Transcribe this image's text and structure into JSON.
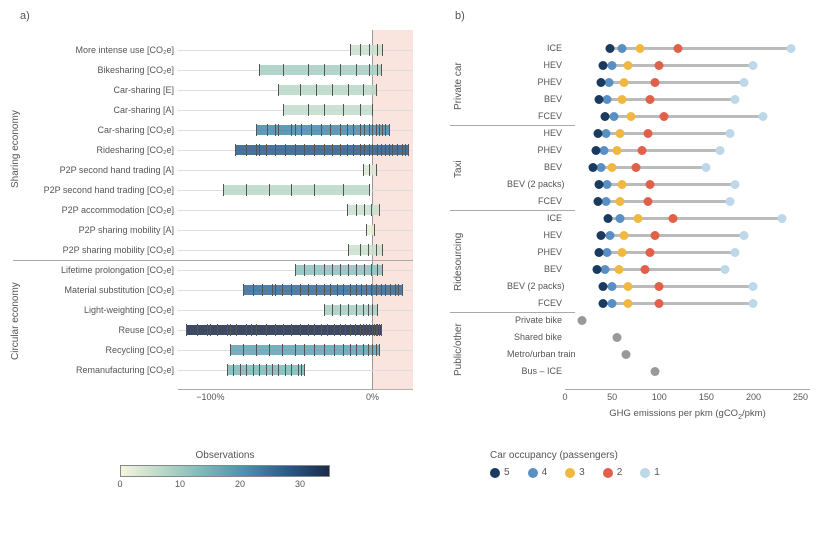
{
  "panelA": {
    "label": "a)",
    "xlim": [
      -120,
      25
    ],
    "xticks": [
      {
        "v": -100,
        "t": "−100%"
      },
      {
        "v": 0,
        "t": "0%"
      }
    ],
    "shade_from": 0,
    "shade_to": 25,
    "groups": [
      {
        "name": "Sharing economy",
        "rows": [
          {
            "label": "More intense use [CO₂e]",
            "min": -14,
            "max": 6,
            "obs": 5,
            "ticks": [
              -14,
              -8,
              -2,
              3,
              6
            ]
          },
          {
            "label": "Bikesharing [CO₂e]",
            "min": -70,
            "max": 5,
            "obs": 9,
            "ticks": [
              -70,
              -55,
              -40,
              -30,
              -20,
              -10,
              -2,
              3,
              5
            ]
          },
          {
            "label": "Car-sharing [E]",
            "min": -58,
            "max": 2,
            "obs": 7,
            "ticks": [
              -58,
              -45,
              -35,
              -25,
              -15,
              -6,
              2
            ]
          },
          {
            "label": "Car-sharing [A]",
            "min": -55,
            "max": 0,
            "obs": 6,
            "ticks": [
              -55,
              -40,
              -30,
              -18,
              -8,
              0
            ]
          },
          {
            "label": "Car-sharing [CO₂e]",
            "min": -72,
            "max": 10,
            "obs": 22,
            "ticks": [
              -72,
              -65,
              -58,
              -50,
              -44,
              -38,
              -32,
              -26,
              -20,
              -16,
              -12,
              -8,
              -5,
              -2,
              0,
              2,
              4,
              6,
              8,
              10,
              -60,
              -48
            ]
          },
          {
            "label": "Ridesharing [CO₂e]",
            "min": -85,
            "max": 22,
            "obs": 28,
            "ticks": [
              -85,
              -78,
              -72,
              -66,
              -60,
              -54,
              -48,
              -42,
              -36,
              -30,
              -25,
              -20,
              -16,
              -12,
              -8,
              -5,
              -2,
              0,
              3,
              5,
              8,
              10,
              12,
              15,
              18,
              20,
              22,
              -70
            ]
          },
          {
            "label": "P2P second hand trading [A]",
            "min": -6,
            "max": 2,
            "obs": 3,
            "ticks": [
              -6,
              -2,
              2
            ]
          },
          {
            "label": "P2P second hand trading [CO₂e]",
            "min": -92,
            "max": -2,
            "obs": 7,
            "ticks": [
              -92,
              -78,
              -64,
              -50,
              -36,
              -18,
              -2
            ]
          },
          {
            "label": "P2P accommodation [CO₂e]",
            "min": -16,
            "max": 4,
            "obs": 5,
            "ticks": [
              -16,
              -10,
              -5,
              -1,
              4
            ]
          },
          {
            "label": "P2P sharing mobility [A]",
            "min": -4,
            "max": 1,
            "obs": 2,
            "ticks": [
              -4,
              1
            ]
          },
          {
            "label": "P2P sharing mobility [CO₂e]",
            "min": -15,
            "max": 6,
            "obs": 5,
            "ticks": [
              -15,
              -8,
              -3,
              2,
              6
            ]
          }
        ]
      },
      {
        "name": "Circular economy",
        "rows": [
          {
            "label": "Lifetime prolongation [CO₂e]",
            "min": -48,
            "max": 6,
            "obs": 12,
            "ticks": [
              -48,
              -42,
              -36,
              -30,
              -25,
              -20,
              -15,
              -10,
              -5,
              -1,
              3,
              6
            ]
          },
          {
            "label": "Material substitution [CO₂e]",
            "min": -80,
            "max": 18,
            "obs": 26,
            "ticks": [
              -80,
              -74,
              -68,
              -62,
              -56,
              -50,
              -45,
              -40,
              -35,
              -30,
              -26,
              -22,
              -18,
              -14,
              -10,
              -7,
              -4,
              -1,
              2,
              5,
              8,
              11,
              14,
              16,
              18,
              -60
            ]
          },
          {
            "label": "Light-weighting [CO₂e]",
            "min": -30,
            "max": 3,
            "obs": 9,
            "ticks": [
              -30,
              -25,
              -20,
              -15,
              -10,
              -6,
              -3,
              0,
              3
            ]
          },
          {
            "label": "Reuse [CO₂e]",
            "min": -115,
            "max": 5,
            "obs": 35,
            "ticks": [
              -115,
              -108,
              -102,
              -96,
              -90,
              -84,
              -78,
              -72,
              -66,
              -60,
              -55,
              -50,
              -45,
              -40,
              -36,
              -32,
              -28,
              -24,
              -20,
              -17,
              -14,
              -11,
              -8,
              -6,
              -4,
              -2,
              0,
              1,
              2,
              3,
              4,
              5,
              -100,
              -88,
              -75
            ]
          },
          {
            "label": "Recycling [CO₂e]",
            "min": -88,
            "max": 4,
            "obs": 18,
            "ticks": [
              -88,
              -80,
              -72,
              -64,
              -56,
              -48,
              -42,
              -36,
              -30,
              -24,
              -18,
              -14,
              -10,
              -6,
              -3,
              0,
              2,
              4
            ]
          },
          {
            "label": "Remanufacturing [CO₂e]",
            "min": -90,
            "max": -42,
            "obs": 14,
            "ticks": [
              -90,
              -86,
              -82,
              -78,
              -74,
              -70,
              -66,
              -62,
              -58,
              -54,
              -50,
              -46,
              -44,
              -42
            ]
          }
        ]
      }
    ],
    "colorbar": {
      "title": "Observations",
      "gradient_stops": [
        "#f5f5dc",
        "#b8d8c8",
        "#7ab8b8",
        "#4a90b0",
        "#2a5a8a",
        "#1a2a4a"
      ],
      "min": 0,
      "max": 35,
      "ticks": [
        0,
        10,
        20,
        30
      ]
    }
  },
  "panelB": {
    "label": "b)",
    "xlim": [
      0,
      260
    ],
    "xticks": [
      0,
      50,
      100,
      150,
      200,
      250
    ],
    "xlabel": "GHG emissions per pkm (gCO₂/pkm)",
    "occ_colors": {
      "5": "#1b3a5f",
      "4": "#5a8fc4",
      "3": "#f0b840",
      "2": "#e0604a",
      "1": "#bdd8e8"
    },
    "groups": [
      {
        "name": "Private car",
        "rows": [
          {
            "label": "ICE",
            "vals": {
              "5": 48,
              "4": 60,
              "3": 80,
              "2": 120,
              "1": 240
            }
          },
          {
            "label": "HEV",
            "vals": {
              "5": 40,
              "4": 50,
              "3": 67,
              "2": 100,
              "1": 200
            }
          },
          {
            "label": "PHEV",
            "vals": {
              "5": 38,
              "4": 47,
              "3": 63,
              "2": 95,
              "1": 190
            }
          },
          {
            "label": "BEV",
            "vals": {
              "5": 36,
              "4": 45,
              "3": 60,
              "2": 90,
              "1": 180
            }
          },
          {
            "label": "FCEV",
            "vals": {
              "5": 42,
              "4": 52,
              "3": 70,
              "2": 105,
              "1": 210
            }
          }
        ]
      },
      {
        "name": "Taxi",
        "rows": [
          {
            "label": "HEV",
            "vals": {
              "5": 35,
              "4": 44,
              "3": 58,
              "2": 88,
              "1": 175
            }
          },
          {
            "label": "PHEV",
            "vals": {
              "5": 33,
              "4": 41,
              "3": 55,
              "2": 82,
              "1": 165
            }
          },
          {
            "label": "BEV",
            "vals": {
              "5": 30,
              "4": 38,
              "3": 50,
              "2": 75,
              "1": 150
            }
          },
          {
            "label": "BEV (2 packs)",
            "vals": {
              "5": 36,
              "4": 45,
              "3": 60,
              "2": 90,
              "1": 180
            }
          },
          {
            "label": "FCEV",
            "vals": {
              "5": 35,
              "4": 44,
              "3": 58,
              "2": 88,
              "1": 175
            }
          }
        ]
      },
      {
        "name": "Ridesourcing",
        "rows": [
          {
            "label": "ICE",
            "vals": {
              "5": 46,
              "4": 58,
              "3": 77,
              "2": 115,
              "1": 230
            }
          },
          {
            "label": "HEV",
            "vals": {
              "5": 38,
              "4": 48,
              "3": 63,
              "2": 95,
              "1": 190
            }
          },
          {
            "label": "PHEV",
            "vals": {
              "5": 36,
              "4": 45,
              "3": 60,
              "2": 90,
              "1": 180
            }
          },
          {
            "label": "BEV",
            "vals": {
              "5": 34,
              "4": 42,
              "3": 57,
              "2": 85,
              "1": 170
            }
          },
          {
            "label": "BEV (2 packs)",
            "vals": {
              "5": 40,
              "4": 50,
              "3": 67,
              "2": 100,
              "1": 200
            }
          },
          {
            "label": "FCEV",
            "vals": {
              "5": 40,
              "4": 50,
              "3": 67,
              "2": 100,
              "1": 200
            }
          }
        ]
      },
      {
        "name": "Public/other",
        "rows": [
          {
            "label": "Private bike",
            "single": 18
          },
          {
            "label": "Shared bike",
            "single": 55
          },
          {
            "label": "Metro/urban train",
            "single": 65
          },
          {
            "label": "Bus – ICE",
            "single": 95
          }
        ]
      }
    ],
    "legend": {
      "title": "Car occupancy (passengers)",
      "items": [
        {
          "n": "5",
          "c": "#1b3a5f"
        },
        {
          "n": "4",
          "c": "#5a8fc4"
        },
        {
          "n": "3",
          "c": "#f0b840"
        },
        {
          "n": "2",
          "c": "#e0604a"
        },
        {
          "n": "1",
          "c": "#bdd8e8"
        }
      ]
    }
  }
}
